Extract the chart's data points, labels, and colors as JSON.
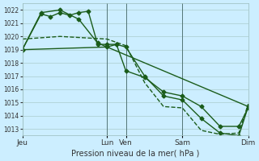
{
  "title": "",
  "xlabel": "Pression niveau de la mer( hPa )",
  "ylabel": "",
  "bg_color": "#cceeff",
  "line_color": "#1a5c1a",
  "grid_color": "#aacccc",
  "ylim": [
    1012.5,
    1022.5
  ],
  "yticks": [
    1013,
    1014,
    1015,
    1016,
    1017,
    1018,
    1019,
    1020,
    1021,
    1022
  ],
  "xtick_labels": [
    "Jeu",
    "Lun",
    "Ven",
    "Sam",
    "Dim"
  ],
  "xtick_positions": [
    0,
    4.5,
    5.5,
    8.5,
    12
  ],
  "lines": [
    {
      "x": [
        0,
        1.0,
        1.5,
        2.0,
        2.5,
        3.0,
        3.5,
        4.0,
        4.5,
        5.0,
        5.5,
        6.5,
        7.5,
        8.5,
        9.5,
        10.5,
        11.5,
        12
      ],
      "y": [
        1019.0,
        1021.7,
        1021.5,
        1021.8,
        1021.6,
        1021.8,
        1021.9,
        1019.4,
        1019.4,
        1019.4,
        1019.2,
        1017.0,
        1015.5,
        1015.2,
        1013.8,
        1012.7,
        1012.5,
        1014.7
      ],
      "style": "-",
      "marker": "D",
      "markersize": 2.5,
      "linewidth": 1.0
    },
    {
      "x": [
        0,
        1.0,
        2.0,
        3.0,
        4.0,
        4.5,
        5.0,
        5.5,
        6.5,
        7.5,
        8.5,
        9.5,
        10.5,
        11.5,
        12
      ],
      "y": [
        1019.0,
        1021.8,
        1022.0,
        1021.3,
        1019.5,
        1019.2,
        1019.4,
        1017.4,
        1016.9,
        1015.8,
        1015.5,
        1014.7,
        1013.2,
        1013.2,
        1014.6
      ],
      "style": "-",
      "marker": "D",
      "markersize": 2.5,
      "linewidth": 1.0
    },
    {
      "x": [
        0,
        2.0,
        4.5,
        5.5,
        6.5,
        7.5,
        8.5,
        9.5,
        10.5,
        11.5,
        12
      ],
      "y": [
        1019.8,
        1020.0,
        1019.8,
        1019.3,
        1016.5,
        1014.7,
        1014.6,
        1012.9,
        1012.6,
        1012.7,
        1014.9
      ],
      "style": "--",
      "marker": null,
      "markersize": 0,
      "linewidth": 1.0
    },
    {
      "x": [
        0,
        4.5,
        12
      ],
      "y": [
        1019.0,
        1019.2,
        1014.7
      ],
      "style": "-",
      "marker": null,
      "markersize": 0,
      "linewidth": 1.0
    }
  ],
  "vlines": [
    4.5,
    5.5,
    8.5,
    12
  ],
  "figsize": [
    3.2,
    2.0
  ],
  "dpi": 100
}
